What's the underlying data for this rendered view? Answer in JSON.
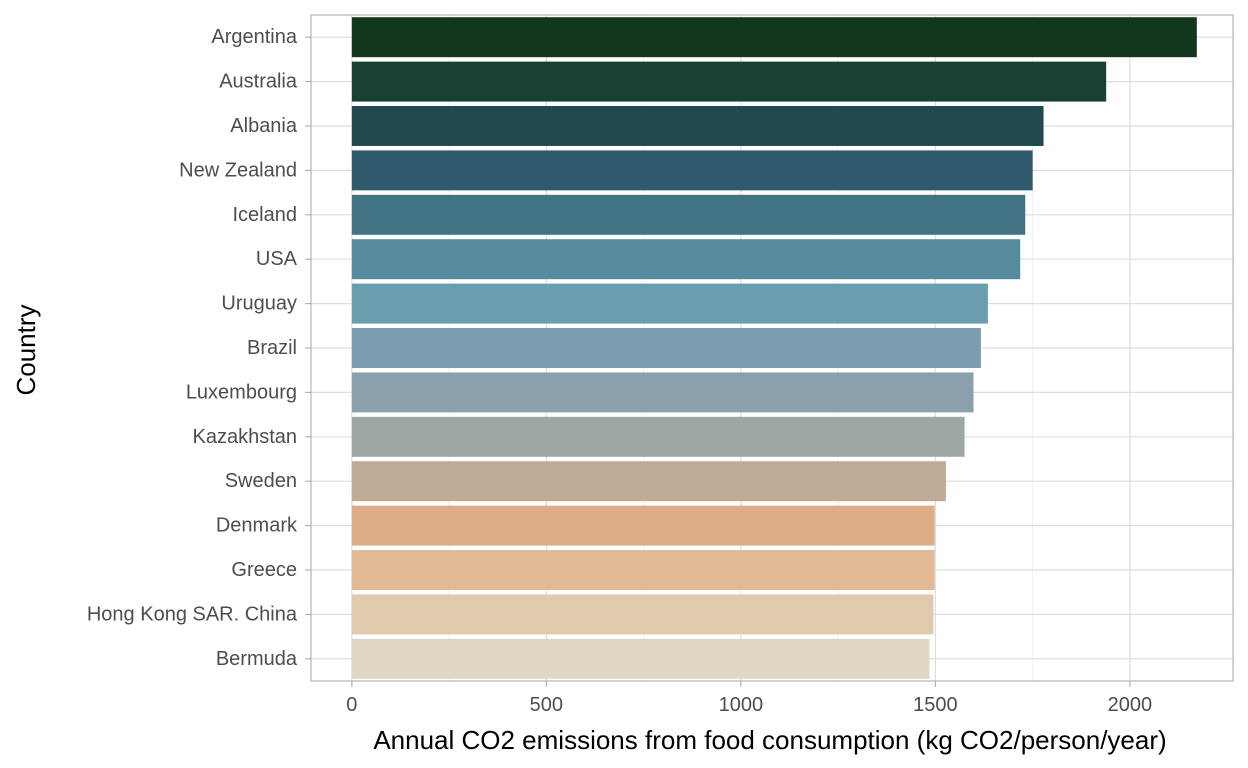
{
  "chart_data": {
    "type": "bar",
    "orientation": "horizontal",
    "title": "",
    "xlabel": "Annual CO2 emissions from food consumption (kg CO2/person/year)",
    "ylabel": "Country",
    "xlim": [
      -105,
      2265
    ],
    "xticks": [
      0,
      500,
      1000,
      1500,
      2000
    ],
    "xtick_labels": [
      "0",
      "500",
      "1000",
      "1500",
      "2000"
    ],
    "grid": true,
    "legend": "none",
    "categories": [
      "Argentina",
      "Australia",
      "Albania",
      "New Zealand",
      "Iceland",
      "USA",
      "Uruguay",
      "Brazil",
      "Luxembourg",
      "Kazakhstan",
      "Sweden",
      "Denmark",
      "Greece",
      "Hong Kong SAR. China",
      "Bermuda"
    ],
    "values": [
      2172,
      1939,
      1778,
      1750,
      1731,
      1718,
      1635,
      1617,
      1598,
      1575,
      1527,
      1498,
      1498,
      1495,
      1485
    ],
    "colors": [
      "#11371c",
      "#183f33",
      "#214a4f",
      "#2e5a6b",
      "#427382",
      "#568b9d",
      "#6a9dae",
      "#7a9daf",
      "#8aa1ac",
      "#9ea6a6",
      "#bfaa96",
      "#ddae85",
      "#e3b894",
      "#e0c9ad",
      "#ded8c5"
    ]
  }
}
